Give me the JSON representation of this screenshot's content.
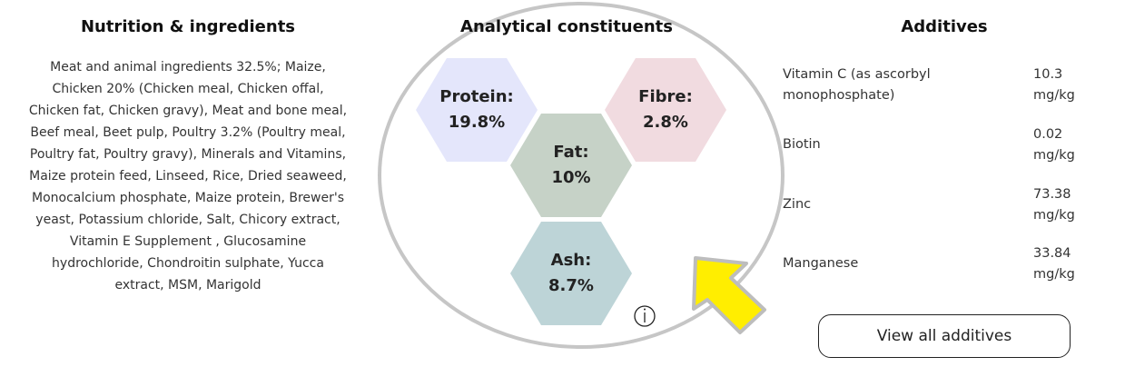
{
  "nutrition": {
    "title": "Nutrition & ingredients",
    "ingredients": "Meat and animal ingredients 32.5%; Maize, Chicken 20% (Chicken meal, Chicken offal, Chicken fat, Chicken gravy), Meat and bone meal, Beef meal, Beet pulp, Poultry 3.2% (Poultry meal, Poultry fat, Poultry gravy), Minerals and Vitamins, Maize protein feed, Linseed, Rice, Dried seaweed, Monocalcium phosphate, Maize protein, Brewer's yeast, Potassium chloride, Salt, Chicory extract, Vitamin E Supplement , Glucosamine hydrochloride, Chondroitin sulphate, Yucca extract, MSM, Marigold"
  },
  "analytical": {
    "title": "Analytical constituents",
    "items": [
      {
        "label": "Protein:",
        "value": "19.8%"
      },
      {
        "label": "Fibre:",
        "value": "2.8%"
      },
      {
        "label": "Fat:",
        "value": "10%"
      },
      {
        "label": "Ash:",
        "value": "8.7%"
      }
    ]
  },
  "additives": {
    "title": "Additives",
    "rows": [
      {
        "name": "Vitamin C (as ascorbyl monophosphate)",
        "amount": "10.3 mg/kg"
      },
      {
        "name": "Biotin",
        "amount": "0.02 mg/kg"
      },
      {
        "name": "Zinc",
        "amount": "73.38 mg/kg"
      },
      {
        "name": "Manganese",
        "amount": "33.84 mg/kg"
      }
    ],
    "button": "View all additives"
  }
}
